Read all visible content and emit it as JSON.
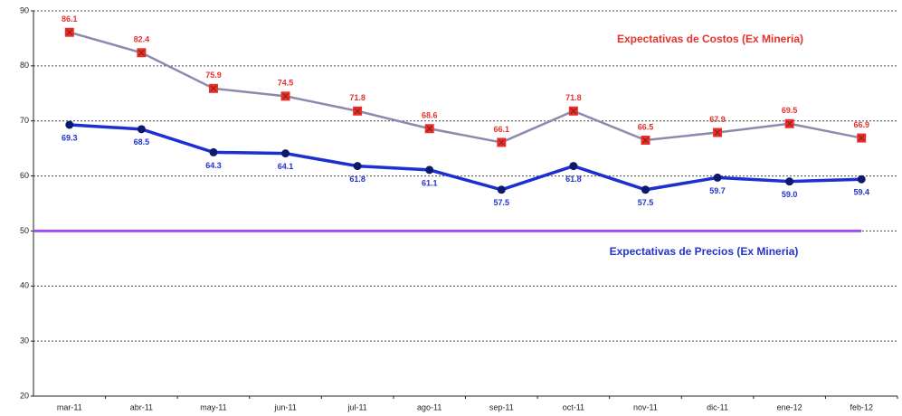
{
  "chart_data": {
    "type": "line",
    "categories": [
      "mar-11",
      "abr-11",
      "may-11",
      "jun-11",
      "jul-11",
      "ago-11",
      "sep-11",
      "oct-11",
      "nov-11",
      "dic-11",
      "ene-12",
      "feb-12"
    ],
    "series": [
      {
        "name": "Expectativas de Costos (Ex Mineria)",
        "color": "#8a8aae",
        "marker_color": "#e8302a",
        "label_color": "#e8302a",
        "marker": "square",
        "values": [
          86.1,
          82.4,
          75.9,
          74.5,
          71.8,
          68.6,
          66.1,
          71.8,
          66.5,
          67.9,
          69.5,
          66.9
        ]
      },
      {
        "name": "Expectativas de Precios (Ex Mineria)",
        "color": "#1d2fd0",
        "marker_color": "#0c1a6e",
        "label_color": "#2233cc",
        "marker": "circle",
        "values": [
          69.3,
          68.5,
          64.3,
          64.1,
          61.8,
          61.1,
          57.5,
          61.8,
          57.5,
          59.7,
          59,
          59.4
        ],
        "value_labels": [
          "69.3",
          "68.5",
          "64.3",
          "64.1",
          "61.8",
          "61.1",
          "57.5",
          "61.8",
          "57.5",
          "59.7",
          "59.0",
          "59.4"
        ]
      }
    ],
    "reference_line": {
      "value": 50,
      "color": "#9b50f5"
    },
    "ylim": [
      20,
      90
    ],
    "yticks": [
      20,
      30,
      40,
      50,
      60,
      70,
      80,
      90
    ],
    "grid": true
  }
}
